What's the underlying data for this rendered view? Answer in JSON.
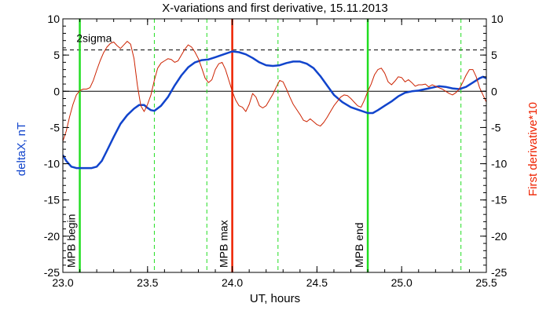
{
  "chart_data": {
    "type": "line",
    "title": "X-variations and first derivative, 15.11.2013",
    "xlabel": "UT, hours",
    "ylabel_left": "deltaX, nT",
    "ylabel_right": "First derivative*10",
    "xlim": [
      23.0,
      25.5
    ],
    "ylim": [
      -25,
      10
    ],
    "x_ticks": [
      {
        "value": 23.0,
        "label": "23.0"
      },
      {
        "value": 23.5,
        "label": "23.5"
      },
      {
        "value": 24.0,
        "label": "24.0"
      },
      {
        "value": 24.5,
        "label": "24.5"
      },
      {
        "value": 25.0,
        "label": "25.0"
      },
      {
        "value": 25.5,
        "label": "25.5"
      }
    ],
    "y_ticks": [
      {
        "value": 10,
        "label": "10"
      },
      {
        "value": 5,
        "label": "5"
      },
      {
        "value": 0,
        "label": "0"
      },
      {
        "value": -5,
        "label": "-5"
      },
      {
        "value": -10,
        "label": "-10"
      },
      {
        "value": -15,
        "label": "-15"
      },
      {
        "value": -20,
        "label": "-20"
      },
      {
        "value": -25,
        "label": "-25"
      }
    ],
    "sigma_level": {
      "label": "2sigma",
      "value": 5.7,
      "color": "#000000"
    },
    "zero_line": {
      "value": 0,
      "color": "#000000"
    },
    "vertical_lines": [
      {
        "x": 23.1,
        "label": "MPB begin",
        "color": "#22dd22",
        "style": "solid",
        "width": 2.5
      },
      {
        "x": 24.0,
        "label": "MPB max",
        "color": "#ee2200",
        "style": "solid",
        "width": 2.5
      },
      {
        "x": 24.8,
        "label": "MPB end",
        "color": "#22dd22",
        "style": "solid",
        "width": 2.5
      },
      {
        "x": 23.54,
        "label": "",
        "color": "#22dd22",
        "style": "dashed",
        "width": 1
      },
      {
        "x": 23.85,
        "label": "",
        "color": "#22dd22",
        "style": "dashed",
        "width": 1
      },
      {
        "x": 24.27,
        "label": "",
        "color": "#22dd22",
        "style": "dashed",
        "width": 1
      },
      {
        "x": 25.35,
        "label": "",
        "color": "#22dd22",
        "style": "dashed",
        "width": 1
      }
    ],
    "series": [
      {
        "name": "deltaX, nT",
        "axis": "left",
        "color": "#1144cc",
        "width": 2.5,
        "points": [
          [
            23.0,
            -8.8
          ],
          [
            23.02,
            -9.6
          ],
          [
            23.05,
            -10.4
          ],
          [
            23.08,
            -10.6
          ],
          [
            23.12,
            -10.6
          ],
          [
            23.17,
            -10.6
          ],
          [
            23.2,
            -10.4
          ],
          [
            23.23,
            -9.6
          ],
          [
            23.26,
            -8.2
          ],
          [
            23.3,
            -6.3
          ],
          [
            23.34,
            -4.5
          ],
          [
            23.38,
            -3.3
          ],
          [
            23.42,
            -2.4
          ],
          [
            23.45,
            -1.9
          ],
          [
            23.48,
            -1.9
          ],
          [
            23.5,
            -2.3
          ],
          [
            23.52,
            -2.6
          ],
          [
            23.54,
            -2.7
          ],
          [
            23.58,
            -2.0
          ],
          [
            23.62,
            -0.8
          ],
          [
            23.66,
            0.8
          ],
          [
            23.7,
            2.2
          ],
          [
            23.74,
            3.3
          ],
          [
            23.78,
            4.0
          ],
          [
            23.82,
            4.3
          ],
          [
            23.86,
            4.4
          ],
          [
            23.9,
            4.7
          ],
          [
            23.95,
            5.1
          ],
          [
            24.0,
            5.5
          ],
          [
            24.04,
            5.4
          ],
          [
            24.08,
            5.1
          ],
          [
            24.12,
            4.6
          ],
          [
            24.16,
            4.0
          ],
          [
            24.2,
            3.6
          ],
          [
            24.24,
            3.5
          ],
          [
            24.28,
            3.6
          ],
          [
            24.32,
            3.9
          ],
          [
            24.36,
            4.1
          ],
          [
            24.4,
            4.1
          ],
          [
            24.44,
            3.8
          ],
          [
            24.48,
            3.2
          ],
          [
            24.52,
            2.1
          ],
          [
            24.56,
            0.8
          ],
          [
            24.6,
            -0.5
          ],
          [
            24.65,
            -1.5
          ],
          [
            24.7,
            -2.2
          ],
          [
            24.75,
            -2.6
          ],
          [
            24.8,
            -3.0
          ],
          [
            24.83,
            -3.0
          ],
          [
            24.86,
            -2.6
          ],
          [
            24.9,
            -2.0
          ],
          [
            24.94,
            -1.4
          ],
          [
            24.98,
            -0.7
          ],
          [
            25.02,
            -0.2
          ],
          [
            25.06,
            0.0
          ],
          [
            25.1,
            0.1
          ],
          [
            25.14,
            0.3
          ],
          [
            25.18,
            0.5
          ],
          [
            25.22,
            0.7
          ],
          [
            25.26,
            0.6
          ],
          [
            25.3,
            0.4
          ],
          [
            25.34,
            0.3
          ],
          [
            25.38,
            0.6
          ],
          [
            25.42,
            1.2
          ],
          [
            25.46,
            1.8
          ],
          [
            25.48,
            2.0
          ],
          [
            25.5,
            1.8
          ]
        ]
      },
      {
        "name": "First derivative*10",
        "axis": "right",
        "color": "#cc2200",
        "width": 1,
        "points": [
          [
            23.0,
            -6.9
          ],
          [
            23.02,
            -5.5
          ],
          [
            23.04,
            -3.5
          ],
          [
            23.06,
            -1.8
          ],
          [
            23.08,
            -0.5
          ],
          [
            23.1,
            0.1
          ],
          [
            23.12,
            0.3
          ],
          [
            23.14,
            0.3
          ],
          [
            23.16,
            0.5
          ],
          [
            23.18,
            1.5
          ],
          [
            23.2,
            2.9
          ],
          [
            23.22,
            4.2
          ],
          [
            23.24,
            5.3
          ],
          [
            23.26,
            6.1
          ],
          [
            23.28,
            6.6
          ],
          [
            23.3,
            6.8
          ],
          [
            23.32,
            6.3
          ],
          [
            23.34,
            5.9
          ],
          [
            23.36,
            6.4
          ],
          [
            23.38,
            6.9
          ],
          [
            23.4,
            6.5
          ],
          [
            23.42,
            4.5
          ],
          [
            23.44,
            0.8
          ],
          [
            23.46,
            -2.0
          ],
          [
            23.48,
            -2.8
          ],
          [
            23.5,
            -1.8
          ],
          [
            23.52,
            -0.5
          ],
          [
            23.54,
            1.5
          ],
          [
            23.56,
            3.2
          ],
          [
            23.58,
            3.9
          ],
          [
            23.6,
            4.2
          ],
          [
            23.62,
            4.5
          ],
          [
            23.64,
            4.4
          ],
          [
            23.66,
            4.0
          ],
          [
            23.68,
            4.2
          ],
          [
            23.7,
            5.0
          ],
          [
            23.72,
            5.8
          ],
          [
            23.74,
            6.4
          ],
          [
            23.76,
            6.1
          ],
          [
            23.78,
            5.4
          ],
          [
            23.8,
            4.5
          ],
          [
            23.82,
            3.2
          ],
          [
            23.84,
            1.8
          ],
          [
            23.86,
            1.2
          ],
          [
            23.88,
            1.6
          ],
          [
            23.9,
            3.0
          ],
          [
            23.92,
            3.8
          ],
          [
            23.94,
            4.0
          ],
          [
            23.96,
            3.0
          ],
          [
            23.98,
            1.5
          ],
          [
            24.0,
            0.0
          ],
          [
            24.02,
            -1.2
          ],
          [
            24.04,
            -2.0
          ],
          [
            24.06,
            -2.2
          ],
          [
            24.08,
            -2.8
          ],
          [
            24.1,
            -1.8
          ],
          [
            24.12,
            -0.3
          ],
          [
            24.14,
            -0.8
          ],
          [
            24.16,
            -2.0
          ],
          [
            24.18,
            -2.3
          ],
          [
            24.2,
            -2.0
          ],
          [
            24.22,
            -1.2
          ],
          [
            24.24,
            -0.4
          ],
          [
            24.26,
            0.6
          ],
          [
            24.28,
            1.5
          ],
          [
            24.3,
            1.3
          ],
          [
            24.32,
            0.3
          ],
          [
            24.34,
            -0.8
          ],
          [
            24.36,
            -1.8
          ],
          [
            24.38,
            -2.5
          ],
          [
            24.4,
            -3.2
          ],
          [
            24.42,
            -4.0
          ],
          [
            24.44,
            -4.2
          ],
          [
            24.46,
            -3.8
          ],
          [
            24.48,
            -4.2
          ],
          [
            24.5,
            -4.6
          ],
          [
            24.52,
            -4.8
          ],
          [
            24.54,
            -4.3
          ],
          [
            24.56,
            -3.6
          ],
          [
            24.58,
            -2.8
          ],
          [
            24.6,
            -2.0
          ],
          [
            24.62,
            -1.4
          ],
          [
            24.64,
            -0.8
          ],
          [
            24.66,
            -0.5
          ],
          [
            24.68,
            -0.6
          ],
          [
            24.7,
            -1.0
          ],
          [
            24.72,
            -1.5
          ],
          [
            24.74,
            -2.0
          ],
          [
            24.76,
            -2.2
          ],
          [
            24.78,
            -1.2
          ],
          [
            24.8,
            0.0
          ],
          [
            24.82,
            1.0
          ],
          [
            24.84,
            2.3
          ],
          [
            24.86,
            3.0
          ],
          [
            24.88,
            3.2
          ],
          [
            24.9,
            2.5
          ],
          [
            24.92,
            1.3
          ],
          [
            24.94,
            0.9
          ],
          [
            24.96,
            1.4
          ],
          [
            24.98,
            2.0
          ],
          [
            25.0,
            1.9
          ],
          [
            25.02,
            1.3
          ],
          [
            25.04,
            1.6
          ],
          [
            25.06,
            1.2
          ],
          [
            25.08,
            0.7
          ],
          [
            25.1,
            0.9
          ],
          [
            25.12,
            0.9
          ],
          [
            25.14,
            1.0
          ],
          [
            25.16,
            0.6
          ],
          [
            25.18,
            0.9
          ],
          [
            25.2,
            0.7
          ],
          [
            25.22,
            0.5
          ],
          [
            25.24,
            0.3
          ],
          [
            25.26,
            0.0
          ],
          [
            25.28,
            -0.3
          ],
          [
            25.3,
            -0.5
          ],
          [
            25.32,
            -0.2
          ],
          [
            25.34,
            0.3
          ],
          [
            25.36,
            1.2
          ],
          [
            25.38,
            2.2
          ],
          [
            25.4,
            3.0
          ],
          [
            25.42,
            3.0
          ],
          [
            25.44,
            2.0
          ],
          [
            25.46,
            0.5
          ],
          [
            25.48,
            -0.5
          ],
          [
            25.5,
            -1.5
          ]
        ]
      }
    ]
  }
}
